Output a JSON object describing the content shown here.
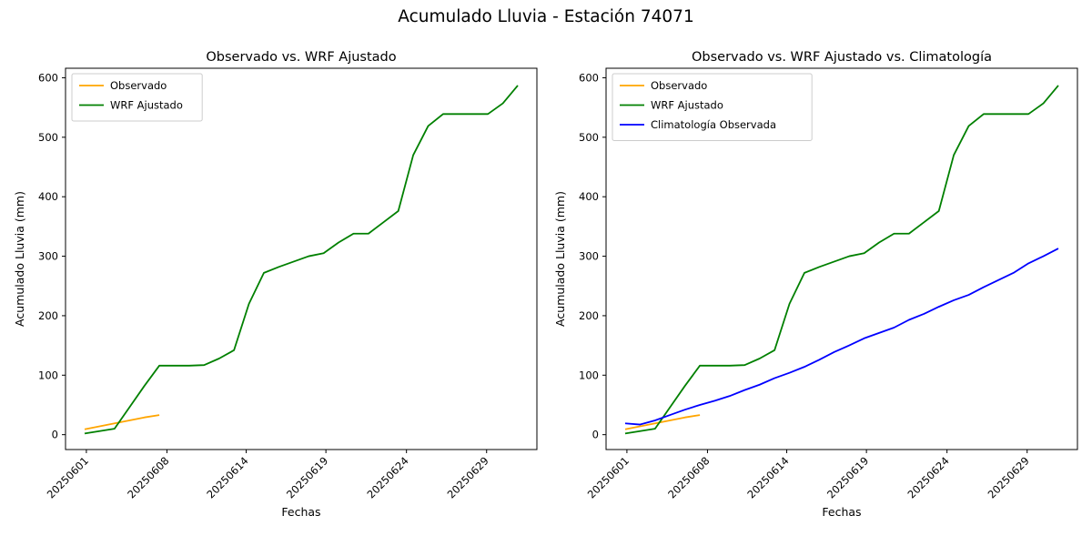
{
  "figure": {
    "title": "Acumulado Lluvia - Estación 74071"
  },
  "chart_data": [
    {
      "type": "line",
      "title": "Observado vs. WRF Ajustado",
      "xlabel": "Fechas",
      "ylabel": "Acumulado Lluvia (mm)",
      "ylim": [
        -25,
        616
      ],
      "yticks": [
        0,
        100,
        200,
        300,
        400,
        500,
        600
      ],
      "grid": false,
      "legend_position": "upper left",
      "x_categories": [
        "20250601",
        "20250602",
        "20250603",
        "20250604",
        "20250605",
        "20250606",
        "20250607",
        "20250608",
        "20250609",
        "20250610",
        "20250611",
        "20250612",
        "20250613",
        "20250614",
        "20250615",
        "20250616",
        "20250617",
        "20250618",
        "20250619",
        "20250620",
        "20250621",
        "20250622",
        "20250623",
        "20250624",
        "20250625",
        "20250626",
        "20250627",
        "20250628",
        "20250629",
        "20250630"
      ],
      "xticks": [
        {
          "label": "20250601",
          "pos": 0.004
        },
        {
          "label": "20250608",
          "pos": 0.19
        },
        {
          "label": "20250614",
          "pos": 0.373
        },
        {
          "label": "20250619",
          "pos": 0.557
        },
        {
          "label": "20250624",
          "pos": 0.743
        },
        {
          "label": "20250629",
          "pos": 0.928
        }
      ],
      "series": [
        {
          "name": "Observado",
          "color": "#FFA500",
          "values": [
            9,
            14,
            19,
            24,
            29,
            33
          ]
        },
        {
          "name": "WRF Ajustado",
          "color": "#008000",
          "values": [
            2,
            6,
            10,
            46,
            82,
            116,
            116,
            116,
            117,
            128,
            142,
            220,
            272,
            282,
            291,
            300,
            305,
            323,
            338,
            338,
            357,
            376,
            470,
            519,
            539,
            539,
            539,
            539,
            557,
            587
          ]
        }
      ]
    },
    {
      "type": "line",
      "title": "Observado vs. WRF Ajustado vs. Climatología",
      "xlabel": "Fechas",
      "ylabel": "Acumulado Lluvia (mm)",
      "ylim": [
        -25,
        616
      ],
      "yticks": [
        0,
        100,
        200,
        300,
        400,
        500,
        600
      ],
      "grid": false,
      "legend_position": "upper left",
      "x_categories": [
        "20250601",
        "20250602",
        "20250603",
        "20250604",
        "20250605",
        "20250606",
        "20250607",
        "20250608",
        "20250609",
        "20250610",
        "20250611",
        "20250612",
        "20250613",
        "20250614",
        "20250615",
        "20250616",
        "20250617",
        "20250618",
        "20250619",
        "20250620",
        "20250621",
        "20250622",
        "20250623",
        "20250624",
        "20250625",
        "20250626",
        "20250627",
        "20250628",
        "20250629",
        "20250630"
      ],
      "xticks": [
        {
          "label": "20250601",
          "pos": 0.004
        },
        {
          "label": "20250608",
          "pos": 0.19
        },
        {
          "label": "20250614",
          "pos": 0.373
        },
        {
          "label": "20250619",
          "pos": 0.557
        },
        {
          "label": "20250624",
          "pos": 0.743
        },
        {
          "label": "20250629",
          "pos": 0.928
        }
      ],
      "series": [
        {
          "name": "Observado",
          "color": "#FFA500",
          "values": [
            9,
            14,
            19,
            24,
            29,
            33
          ]
        },
        {
          "name": "WRF Ajustado",
          "color": "#008000",
          "values": [
            2,
            6,
            10,
            46,
            82,
            116,
            116,
            116,
            117,
            128,
            142,
            220,
            272,
            282,
            291,
            300,
            305,
            323,
            338,
            338,
            357,
            376,
            470,
            519,
            539,
            539,
            539,
            539,
            557,
            587
          ]
        },
        {
          "name": "Climatología Observada",
          "color": "#0000FF",
          "values": [
            19,
            17,
            24,
            33,
            42,
            50,
            57,
            65,
            75,
            84,
            95,
            104,
            114,
            126,
            139,
            150,
            162,
            171,
            180,
            193,
            203,
            215,
            226,
            235,
            248,
            260,
            272,
            288,
            300,
            313
          ]
        }
      ]
    }
  ]
}
